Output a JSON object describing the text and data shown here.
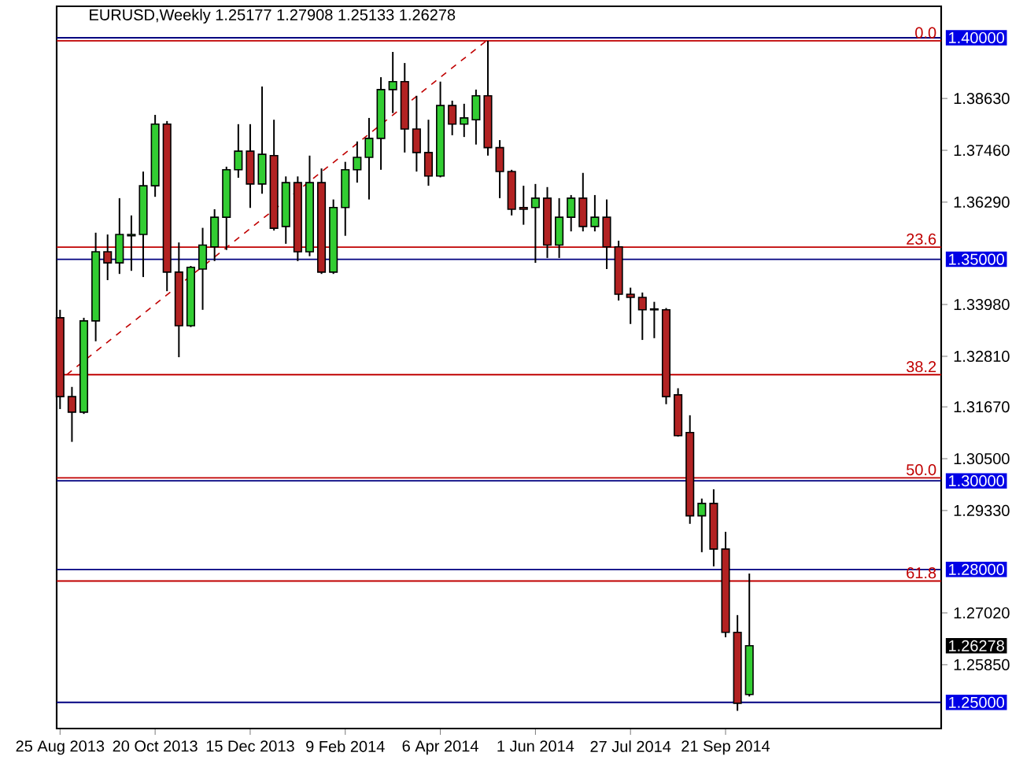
{
  "chart_data": {
    "type": "candlestick",
    "title": "EURUSD,Weekly  1.25177 1.27908 1.25133 1.26278",
    "x": [
      "2013-08-25",
      "2013-09-01",
      "2013-09-08",
      "2013-09-15",
      "2013-09-22",
      "2013-09-29",
      "2013-10-06",
      "2013-10-13",
      "2013-10-20",
      "2013-10-27",
      "2013-11-03",
      "2013-11-10",
      "2013-11-17",
      "2013-11-24",
      "2013-12-01",
      "2013-12-08",
      "2013-12-15",
      "2013-12-22",
      "2013-12-29",
      "2014-01-05",
      "2014-01-12",
      "2014-01-19",
      "2014-01-26",
      "2014-02-02",
      "2014-02-09",
      "2014-02-16",
      "2014-02-23",
      "2014-03-02",
      "2014-03-09",
      "2014-03-16",
      "2014-03-23",
      "2014-03-30",
      "2014-04-06",
      "2014-04-13",
      "2014-04-20",
      "2014-04-27",
      "2014-05-04",
      "2014-05-11",
      "2014-05-18",
      "2014-05-25",
      "2014-06-01",
      "2014-06-08",
      "2014-06-15",
      "2014-06-22",
      "2014-06-29",
      "2014-07-06",
      "2014-07-13",
      "2014-07-20",
      "2014-07-27",
      "2014-08-03",
      "2014-08-10",
      "2014-08-17",
      "2014-08-24",
      "2014-08-31",
      "2014-09-07",
      "2014-09-14",
      "2014-09-21",
      "2014-09-28",
      "2014-10-05"
    ],
    "ohlc": [
      [
        1.3368,
        1.3386,
        1.3162,
        1.319
      ],
      [
        1.319,
        1.3212,
        1.3088,
        1.3155
      ],
      [
        1.3155,
        1.3368,
        1.3151,
        1.3361
      ],
      [
        1.3361,
        1.356,
        1.3315,
        1.3517
      ],
      [
        1.3517,
        1.3556,
        1.3453,
        1.3492
      ],
      [
        1.3492,
        1.3638,
        1.3467,
        1.3556
      ],
      [
        1.3553,
        1.3599,
        1.3474,
        1.3556
      ],
      [
        1.3556,
        1.3698,
        1.346,
        1.3666
      ],
      [
        1.3666,
        1.3826,
        1.3641,
        1.3805
      ],
      [
        1.3805,
        1.3812,
        1.3428,
        1.3471
      ],
      [
        1.3471,
        1.3538,
        1.3279,
        1.335
      ],
      [
        1.335,
        1.3485,
        1.3347,
        1.3482
      ],
      [
        1.3478,
        1.3571,
        1.3386,
        1.3532
      ],
      [
        1.3528,
        1.3613,
        1.3496,
        1.3595
      ],
      [
        1.3595,
        1.3709,
        1.3521,
        1.3702
      ],
      [
        1.3702,
        1.3805,
        1.3684,
        1.3744
      ],
      [
        1.3744,
        1.3805,
        1.3616,
        1.367
      ],
      [
        1.367,
        1.389,
        1.3648,
        1.3737
      ],
      [
        1.3734,
        1.3815,
        1.3565,
        1.357
      ],
      [
        1.3574,
        1.3687,
        1.3535,
        1.3673
      ],
      [
        1.3673,
        1.3687,
        1.3496,
        1.3517
      ],
      [
        1.3517,
        1.3734,
        1.3507,
        1.3673
      ],
      [
        1.3673,
        1.3705,
        1.3467,
        1.3471
      ],
      [
        1.3471,
        1.3635,
        1.3467,
        1.3617
      ],
      [
        1.3617,
        1.372,
        1.3553,
        1.3702
      ],
      [
        1.3702,
        1.3766,
        1.3673,
        1.373
      ],
      [
        1.373,
        1.3819,
        1.3635,
        1.3773
      ],
      [
        1.3773,
        1.3911,
        1.3702,
        1.3883
      ],
      [
        1.3883,
        1.3968,
        1.383,
        1.3901
      ],
      [
        1.3901,
        1.3943,
        1.3741,
        1.3794
      ],
      [
        1.3794,
        1.3869,
        1.3698,
        1.3741
      ],
      [
        1.3741,
        1.3815,
        1.3666,
        1.3688
      ],
      [
        1.3688,
        1.3901,
        1.3685,
        1.3847
      ],
      [
        1.3847,
        1.3858,
        1.378,
        1.3805
      ],
      [
        1.3805,
        1.3851,
        1.3776,
        1.3819
      ],
      [
        1.3815,
        1.3883,
        1.3759,
        1.3869
      ],
      [
        1.3869,
        1.3993,
        1.3734,
        1.3752
      ],
      [
        1.3752,
        1.3769,
        1.3638,
        1.3698
      ],
      [
        1.3698,
        1.3702,
        1.3599,
        1.3613
      ],
      [
        1.3617,
        1.3666,
        1.3578,
        1.3613
      ],
      [
        1.3617,
        1.367,
        1.3492,
        1.3638
      ],
      [
        1.3638,
        1.3663,
        1.3503,
        1.3532
      ],
      [
        1.3532,
        1.3638,
        1.3503,
        1.3595
      ],
      [
        1.3595,
        1.3645,
        1.3563,
        1.3638
      ],
      [
        1.3638,
        1.3695,
        1.3563,
        1.3574
      ],
      [
        1.3574,
        1.3645,
        1.3563,
        1.3595
      ],
      [
        1.3595,
        1.3635,
        1.3478,
        1.3528
      ],
      [
        1.3528,
        1.3542,
        1.3407,
        1.3421
      ],
      [
        1.3421,
        1.3436,
        1.3354,
        1.3414
      ],
      [
        1.3414,
        1.3425,
        1.3318,
        1.3386
      ],
      [
        1.3388,
        1.3404,
        1.3322,
        1.3386
      ],
      [
        1.3386,
        1.339,
        1.3173,
        1.319
      ],
      [
        1.3194,
        1.3209,
        1.31,
        1.3102
      ],
      [
        1.3109,
        1.3148,
        1.2903,
        1.2921
      ],
      [
        1.2921,
        1.296,
        1.2839,
        1.2949
      ],
      [
        1.2949,
        1.2981,
        1.2807,
        1.2846
      ],
      [
        1.2846,
        1.2885,
        1.2647,
        1.2658
      ],
      [
        1.2658,
        1.2697,
        1.2481,
        1.2498
      ],
      [
        1.25177,
        1.27908,
        1.25133,
        1.26278
      ]
    ],
    "colors": [
      "#b22222",
      "#b22222",
      "#32cd32",
      "#32cd32",
      "#b22222",
      "#32cd32",
      "#32cd32",
      "#32cd32",
      "#32cd32",
      "#b22222",
      "#b22222",
      "#32cd32",
      "#32cd32",
      "#32cd32",
      "#32cd32",
      "#32cd32",
      "#b22222",
      "#32cd32",
      "#b22222",
      "#32cd32",
      "#b22222",
      "#32cd32",
      "#b22222",
      "#32cd32",
      "#32cd32",
      "#32cd32",
      "#32cd32",
      "#32cd32",
      "#32cd32",
      "#b22222",
      "#b22222",
      "#b22222",
      "#32cd32",
      "#b22222",
      "#32cd32",
      "#32cd32",
      "#b22222",
      "#b22222",
      "#b22222",
      "#b22222",
      "#32cd32",
      "#b22222",
      "#32cd32",
      "#32cd32",
      "#b22222",
      "#32cd32",
      "#b22222",
      "#b22222",
      "#b22222",
      "#b22222",
      "#b22222",
      "#b22222",
      "#b22222",
      "#b22222",
      "#32cd32",
      "#b22222",
      "#b22222",
      "#b22222",
      "#32cd32"
    ],
    "series": [
      {
        "type": "line",
        "x": [
          "2013-08-29",
          "2014-05-03"
        ],
        "values": [
          1.324,
          1.3993
        ],
        "color": "#c00000",
        "line_style": "dashed"
      }
    ],
    "xlim": [
      "2013-08-23",
      "2015-01-26"
    ],
    "ylim": [
      1.2441,
      1.4071
    ],
    "xticks": [
      {
        "value": "2013-08-25",
        "label": "25 Aug 2013"
      },
      {
        "value": "2013-10-20",
        "label": "20 Oct 2013"
      },
      {
        "value": "2013-12-15",
        "label": "15 Dec 2013"
      },
      {
        "value": "2014-02-09",
        "label": "9 Feb 2014"
      },
      {
        "value": "2014-04-06",
        "label": "6 Apr 2014"
      },
      {
        "value": "2014-06-01",
        "label": "1 Jun 2014"
      },
      {
        "value": "2014-07-27",
        "label": "27 Jul 2014"
      },
      {
        "value": "2014-09-21",
        "label": "21 Sep 2014"
      }
    ],
    "yticks": [
      {
        "value": 1.3863,
        "label": "1.38630"
      },
      {
        "value": 1.3746,
        "label": "1.37460"
      },
      {
        "value": 1.3629,
        "label": "1.36290"
      },
      {
        "value": 1.3398,
        "label": "1.33980"
      },
      {
        "value": 1.3281,
        "label": "1.32810"
      },
      {
        "value": 1.3167,
        "label": "1.31670"
      },
      {
        "value": 1.305,
        "label": "1.30500"
      },
      {
        "value": 1.2933,
        "label": "1.29330"
      },
      {
        "value": 1.2702,
        "label": "1.27020"
      },
      {
        "value": 1.2585,
        "label": "1.25850"
      }
    ],
    "y2lim": [
      78.68,
      -3.95
    ],
    "ref_lines": [
      {
        "axis": "y",
        "value": 1.4,
        "label": "1.40000",
        "color": "#000080"
      },
      {
        "axis": "y",
        "value": 1.35,
        "label": "1.35000",
        "color": "#000080"
      },
      {
        "axis": "y",
        "value": 1.3,
        "label": "1.30000",
        "color": "#000080"
      },
      {
        "axis": "y",
        "value": 1.28,
        "label": "1.28000",
        "color": "#000080"
      },
      {
        "axis": "y",
        "value": 1.25,
        "label": "1.25000",
        "color": "#000080"
      },
      {
        "axis": "y2",
        "value": 0.0,
        "label": "0.0",
        "color": "#c00000"
      },
      {
        "axis": "y2",
        "value": 23.6,
        "label": "23.6",
        "color": "#c00000"
      },
      {
        "axis": "y2",
        "value": 38.2,
        "label": "38.2",
        "color": "#c00000"
      },
      {
        "axis": "y2",
        "value": 50.0,
        "label": "50.0",
        "color": "#c00000"
      },
      {
        "axis": "y2",
        "value": 61.8,
        "label": "61.8",
        "color": "#c00000"
      }
    ],
    "annotations": [
      "1.26278"
    ]
  }
}
